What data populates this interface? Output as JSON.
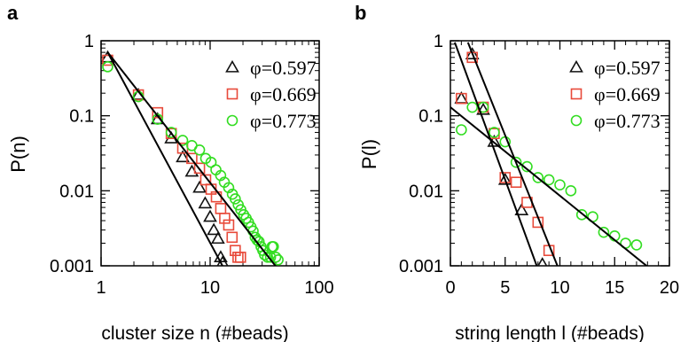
{
  "chart_data": [
    {
      "panel_label": "a",
      "type": "scatter",
      "xscale": "log",
      "yscale": "log",
      "xlim": [
        1,
        100
      ],
      "ylim": [
        0.001,
        1
      ],
      "xlabel": "cluster size n (#beads)",
      "ylabel": "P(n)",
      "x_ticks": [
        1,
        10,
        100
      ],
      "x_tick_labels": [
        "1",
        "10",
        "100"
      ],
      "y_ticks": [
        0.001,
        0.01,
        0.1,
        1
      ],
      "y_tick_labels": [
        "0.001",
        "0.01",
        "0.1",
        "1"
      ],
      "legend_position": "top-right",
      "series": [
        {
          "name": "φ=0.597",
          "marker": "triangle",
          "color": "#111111",
          "points": [
            [
              1.15,
              0.6
            ],
            [
              2.2,
              0.19
            ],
            [
              3.3,
              0.09
            ],
            [
              4.4,
              0.05
            ],
            [
              5.6,
              0.028
            ],
            [
              6.8,
              0.018
            ],
            [
              8.0,
              0.011
            ],
            [
              9.0,
              0.0068
            ],
            [
              10.0,
              0.0045
            ],
            [
              10.8,
              0.003
            ],
            [
              11.8,
              0.0023
            ],
            [
              12.5,
              0.0013
            ],
            [
              13.0,
              0.0011
            ]
          ]
        },
        {
          "name": "φ=0.669",
          "marker": "square",
          "color": "#e84a3a",
          "points": [
            [
              1.15,
              0.55
            ],
            [
              2.2,
              0.19
            ],
            [
              3.3,
              0.11
            ],
            [
              4.4,
              0.058
            ],
            [
              5.6,
              0.037
            ],
            [
              6.8,
              0.027
            ],
            [
              8.0,
              0.02
            ],
            [
              9.1,
              0.014
            ],
            [
              10.2,
              0.0105
            ],
            [
              11.4,
              0.0083
            ],
            [
              12.5,
              0.0058
            ],
            [
              13.6,
              0.0043
            ],
            [
              14.8,
              0.0035
            ],
            [
              15.9,
              0.0024
            ],
            [
              17.0,
              0.0016
            ],
            [
              18.0,
              0.0013
            ],
            [
              19.0,
              0.0013
            ]
          ]
        },
        {
          "name": "φ=0.773",
          "marker": "circle",
          "color": "#33dd22",
          "points": [
            [
              1.15,
              0.45
            ],
            [
              2.2,
              0.18
            ],
            [
              3.3,
              0.09
            ],
            [
              4.4,
              0.06
            ],
            [
              5.6,
              0.047
            ],
            [
              6.8,
              0.04
            ],
            [
              8.0,
              0.035
            ],
            [
              9.1,
              0.027
            ],
            [
              10.2,
              0.024
            ],
            [
              11.3,
              0.019
            ],
            [
              12.5,
              0.016
            ],
            [
              13.5,
              0.013
            ],
            [
              14.8,
              0.011
            ],
            [
              16.0,
              0.009
            ],
            [
              17.0,
              0.0078
            ],
            [
              18.1,
              0.0065
            ],
            [
              19.1,
              0.0056
            ],
            [
              20.3,
              0.0048
            ],
            [
              21.4,
              0.0043
            ],
            [
              22.5,
              0.0038
            ],
            [
              23.7,
              0.0033
            ],
            [
              24.8,
              0.0029
            ],
            [
              25.9,
              0.0024
            ],
            [
              27.0,
              0.0022
            ],
            [
              28.1,
              0.0021
            ],
            [
              29.3,
              0.0018
            ],
            [
              30.4,
              0.0016
            ],
            [
              31.6,
              0.0014
            ],
            [
              33.6,
              0.0013
            ],
            [
              35.8,
              0.0013
            ],
            [
              37.0,
              0.0018
            ],
            [
              38.0,
              0.0018
            ],
            [
              40.0,
              0.0013
            ],
            [
              42.0,
              0.0012
            ]
          ]
        }
      ],
      "fit_lines": [
        {
          "from": [
            1.15,
            0.7
          ],
          "to": [
            13.5,
            0.0009
          ]
        },
        {
          "from": [
            1.15,
            0.7
          ],
          "to": [
            42.0,
            0.0009
          ]
        }
      ]
    },
    {
      "panel_label": "b",
      "type": "scatter",
      "xscale": "linear",
      "yscale": "log",
      "xlim": [
        0,
        20
      ],
      "ylim": [
        0.001,
        1
      ],
      "xlabel": "string length l (#beads)",
      "ylabel": "P(l)",
      "x_ticks": [
        0,
        5,
        10,
        15,
        20
      ],
      "x_tick_labels": [
        "0",
        "5",
        "10",
        "15",
        "20"
      ],
      "y_ticks": [
        0.001,
        0.01,
        0.1,
        1
      ],
      "y_tick_labels": [
        "0.001",
        "0.01",
        "0.1",
        "1"
      ],
      "legend_position": "top-right",
      "series": [
        {
          "name": "φ=0.597",
          "marker": "triangle",
          "color": "#111111",
          "points": [
            [
              1,
              0.17
            ],
            [
              2,
              0.66
            ],
            [
              3,
              0.12
            ],
            [
              4,
              0.045
            ],
            [
              5,
              0.014
            ],
            [
              6.5,
              0.0055
            ],
            [
              8.4,
              0.00105
            ]
          ]
        },
        {
          "name": "φ=0.669",
          "marker": "square",
          "color": "#e84a3a",
          "points": [
            [
              1,
              0.17
            ],
            [
              2,
              0.6
            ],
            [
              3,
              0.13
            ],
            [
              4,
              0.058
            ],
            [
              5,
              0.015
            ],
            [
              6,
              0.013
            ],
            [
              7,
              0.007
            ],
            [
              8,
              0.0038
            ],
            [
              9,
              0.0016
            ]
          ]
        },
        {
          "name": "φ=0.773",
          "marker": "circle",
          "color": "#33dd22",
          "points": [
            [
              1,
              0.065
            ],
            [
              2,
              0.13
            ],
            [
              3,
              0.13
            ],
            [
              4,
              0.06
            ],
            [
              5,
              0.045
            ],
            [
              6,
              0.024
            ],
            [
              7,
              0.021
            ],
            [
              8,
              0.015
            ],
            [
              9,
              0.014
            ],
            [
              10,
              0.012
            ],
            [
              11,
              0.01
            ],
            [
              12,
              0.0048
            ],
            [
              13,
              0.0045
            ],
            [
              14,
              0.0028
            ],
            [
              15,
              0.0025
            ],
            [
              16,
              0.002
            ],
            [
              17,
              0.0019
            ]
          ]
        }
      ],
      "fit_lines": [
        {
          "from": [
            0.4,
            0.95
          ],
          "to": [
            8.0,
            0.0009
          ]
        },
        {
          "from": [
            1.6,
            0.95
          ],
          "to": [
            9.9,
            0.0009
          ]
        },
        {
          "from": [
            0.0,
            0.13
          ],
          "to": [
            18.3,
            0.0009
          ]
        }
      ]
    }
  ]
}
